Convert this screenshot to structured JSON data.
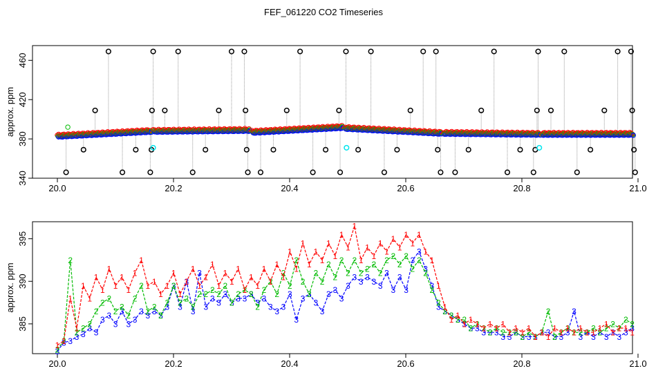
{
  "title": "FEF_061220  CO2 Timeseries",
  "chart_data": [
    {
      "type": "scatter",
      "panel": "top",
      "xlabel": "",
      "ylabel": "approx. ppm",
      "xlim": [
        20.0,
        21.0
      ],
      "ylim": [
        340,
        475
      ],
      "x_ticks": [
        20.0,
        20.2,
        20.4,
        20.6,
        20.8,
        21.0
      ],
      "x_tick_labels": [
        "20.0",
        "20.2",
        "20.4",
        "20.6",
        "20.8",
        "21.0"
      ],
      "y_ticks": [
        340,
        380,
        420,
        460
      ],
      "y_tick_labels": [
        "340",
        "380",
        "420",
        "460"
      ],
      "colors": {
        "s1": "#ff0000",
        "s2": "#00bb00",
        "s3": "#0000ff",
        "spike": "#000000",
        "cyan": "#00e5ee",
        "line": "#999999"
      },
      "segments": [
        {
          "x": [
            20.0,
            20.16
          ],
          "y": [
            382,
            387
          ]
        },
        {
          "x": [
            20.165,
            20.33
          ],
          "y": [
            387,
            388
          ]
        },
        {
          "x": [
            20.335,
            20.49
          ],
          "y": [
            386,
            391
          ]
        },
        {
          "x": [
            20.495,
            20.66
          ],
          "y": [
            390,
            385
          ]
        },
        {
          "x": [
            20.665,
            20.83
          ],
          "y": [
            385,
            384
          ]
        },
        {
          "x": [
            20.835,
            20.99
          ],
          "y": [
            384,
            384
          ]
        }
      ],
      "spikes": [
        {
          "x": 20.015,
          "y": 346
        },
        {
          "x": 20.045,
          "y": 369
        },
        {
          "x": 20.065,
          "y": 409
        },
        {
          "x": 20.088,
          "y": 469
        },
        {
          "x": 20.112,
          "y": 346
        },
        {
          "x": 20.135,
          "y": 369
        },
        {
          "x": 20.16,
          "y": 346
        },
        {
          "x": 20.162,
          "y": 369
        },
        {
          "x": 20.163,
          "y": 409
        },
        {
          "x": 20.165,
          "y": 469
        },
        {
          "x": 20.185,
          "y": 409
        },
        {
          "x": 20.208,
          "y": 469
        },
        {
          "x": 20.233,
          "y": 346
        },
        {
          "x": 20.255,
          "y": 369
        },
        {
          "x": 20.278,
          "y": 409
        },
        {
          "x": 20.3,
          "y": 469
        },
        {
          "x": 20.322,
          "y": 469
        },
        {
          "x": 20.324,
          "y": 409
        },
        {
          "x": 20.326,
          "y": 369
        },
        {
          "x": 20.328,
          "y": 346
        },
        {
          "x": 20.35,
          "y": 346
        },
        {
          "x": 20.372,
          "y": 369
        },
        {
          "x": 20.395,
          "y": 409
        },
        {
          "x": 20.418,
          "y": 469
        },
        {
          "x": 20.44,
          "y": 346
        },
        {
          "x": 20.462,
          "y": 369
        },
        {
          "x": 20.485,
          "y": 409
        },
        {
          "x": 20.487,
          "y": 346
        },
        {
          "x": 20.497,
          "y": 469
        },
        {
          "x": 20.518,
          "y": 369
        },
        {
          "x": 20.54,
          "y": 469
        },
        {
          "x": 20.563,
          "y": 346
        },
        {
          "x": 20.585,
          "y": 369
        },
        {
          "x": 20.608,
          "y": 409
        },
        {
          "x": 20.63,
          "y": 469
        },
        {
          "x": 20.652,
          "y": 469
        },
        {
          "x": 20.655,
          "y": 369
        },
        {
          "x": 20.66,
          "y": 346
        },
        {
          "x": 20.685,
          "y": 346
        },
        {
          "x": 20.708,
          "y": 369
        },
        {
          "x": 20.73,
          "y": 409
        },
        {
          "x": 20.752,
          "y": 469
        },
        {
          "x": 20.775,
          "y": 346
        },
        {
          "x": 20.797,
          "y": 369
        },
        {
          "x": 20.82,
          "y": 346
        },
        {
          "x": 20.823,
          "y": 369
        },
        {
          "x": 20.826,
          "y": 409
        },
        {
          "x": 20.828,
          "y": 469
        },
        {
          "x": 20.85,
          "y": 409
        },
        {
          "x": 20.873,
          "y": 469
        },
        {
          "x": 20.895,
          "y": 346
        },
        {
          "x": 20.918,
          "y": 369
        },
        {
          "x": 20.942,
          "y": 409
        },
        {
          "x": 20.965,
          "y": 469
        },
        {
          "x": 20.988,
          "y": 469
        },
        {
          "x": 20.99,
          "y": 409
        },
        {
          "x": 20.993,
          "y": 369
        },
        {
          "x": 20.995,
          "y": 346
        }
      ],
      "cyan_points": [
        {
          "x": 20.165,
          "y": 371
        },
        {
          "x": 20.498,
          "y": 371
        },
        {
          "x": 20.83,
          "y": 371
        }
      ]
    },
    {
      "type": "line",
      "panel": "bottom",
      "xlabel": "",
      "ylabel": "approx. ppm",
      "xlim": [
        20.0,
        21.0
      ],
      "ylim": [
        381.5,
        397
      ],
      "x_ticks": [
        20.0,
        20.2,
        20.4,
        20.6,
        20.8,
        21.0
      ],
      "x_tick_labels": [
        "20.0",
        "20.2",
        "20.4",
        "20.6",
        "20.8",
        "21.0"
      ],
      "y_ticks": [
        385,
        390,
        395
      ],
      "y_tick_labels": [
        "385",
        "390",
        "395"
      ],
      "x_range": [
        20.0,
        20.99
      ],
      "series": [
        {
          "label": "1",
          "color": "#ff0000",
          "y": [
            382.5,
            383.0,
            388.0,
            384.5,
            389.5,
            388.0,
            390.5,
            389.0,
            391.5,
            389.5,
            390.5,
            389.0,
            391.0,
            392.5,
            389.5,
            390.0,
            388.5,
            389.5,
            391.0,
            388.5,
            390.0,
            391.5,
            389.5,
            390.5,
            392.0,
            389.5,
            391.0,
            390.0,
            391.5,
            389.0,
            390.5,
            389.5,
            391.5,
            390.0,
            392.0,
            390.5,
            393.5,
            391.5,
            394.5,
            392.0,
            393.5,
            392.5,
            394.5,
            393.0,
            395.5,
            394.0,
            396.5,
            392.5,
            394.0,
            393.0,
            394.5,
            393.5,
            395.0,
            394.0,
            395.5,
            394.5,
            395.5,
            393.5,
            392.5,
            389.5,
            387.0,
            385.5,
            386.0,
            385.0,
            385.5,
            385.0,
            384.5,
            385.0,
            384.5,
            385.0,
            384.0,
            384.5,
            384.0,
            384.5,
            383.5,
            384.0,
            383.5,
            384.5,
            384.0,
            384.5,
            384.0,
            384.5,
            384.0,
            384.0,
            384.5,
            385.0,
            384.0,
            384.5,
            384.5,
            384.0
          ]
        },
        {
          "label": "2",
          "color": "#00bb00",
          "y": [
            382.0,
            383.0,
            392.5,
            384.0,
            384.5,
            385.0,
            386.5,
            387.5,
            388.0,
            386.5,
            387.0,
            386.0,
            388.0,
            389.5,
            386.5,
            387.0,
            386.0,
            387.5,
            389.5,
            387.5,
            388.0,
            387.0,
            388.5,
            388.5,
            389.0,
            388.5,
            389.5,
            387.5,
            388.5,
            389.0,
            388.5,
            387.0,
            389.0,
            390.0,
            388.5,
            391.0,
            389.5,
            392.5,
            390.0,
            388.5,
            391.0,
            390.0,
            392.0,
            390.5,
            392.5,
            391.0,
            392.5,
            391.0,
            391.5,
            392.0,
            391.0,
            392.5,
            393.0,
            392.0,
            393.0,
            391.5,
            392.5,
            391.0,
            389.0,
            387.5,
            386.5,
            386.0,
            385.5,
            385.5,
            384.5,
            385.0,
            384.5,
            384.0,
            384.5,
            384.0,
            384.0,
            384.0,
            383.5,
            384.0,
            383.5,
            384.0,
            386.5,
            383.5,
            384.0,
            384.5,
            384.0,
            384.0,
            384.0,
            384.5,
            384.0,
            384.5,
            385.0,
            384.5,
            385.5,
            385.0
          ]
        },
        {
          "label": "3",
          "color": "#0000ff",
          "y": [
            381.8,
            382.8,
            383.0,
            383.5,
            383.8,
            384.5,
            384.0,
            385.5,
            386.0,
            385.0,
            386.5,
            385.0,
            385.5,
            386.5,
            386.0,
            386.5,
            386.0,
            387.0,
            389.5,
            387.0,
            390.0,
            386.5,
            391.0,
            387.0,
            388.0,
            387.5,
            388.5,
            387.5,
            388.0,
            388.0,
            388.5,
            387.5,
            388.0,
            387.0,
            386.5,
            387.0,
            388.5,
            385.5,
            388.0,
            388.5,
            387.5,
            386.5,
            388.5,
            389.0,
            388.0,
            389.5,
            390.5,
            390.0,
            390.5,
            390.0,
            389.5,
            391.0,
            389.0,
            390.5,
            389.0,
            392.5,
            393.5,
            391.5,
            389.5,
            387.0,
            386.5,
            386.0,
            385.5,
            385.0,
            384.5,
            384.5,
            384.0,
            384.0,
            384.0,
            383.5,
            383.5,
            384.0,
            383.5,
            383.5,
            383.5,
            384.0,
            384.0,
            383.5,
            383.5,
            384.0,
            386.5,
            383.5,
            384.0,
            383.5,
            384.0,
            383.5,
            384.0,
            383.5,
            384.0,
            384.5
          ]
        }
      ]
    }
  ]
}
